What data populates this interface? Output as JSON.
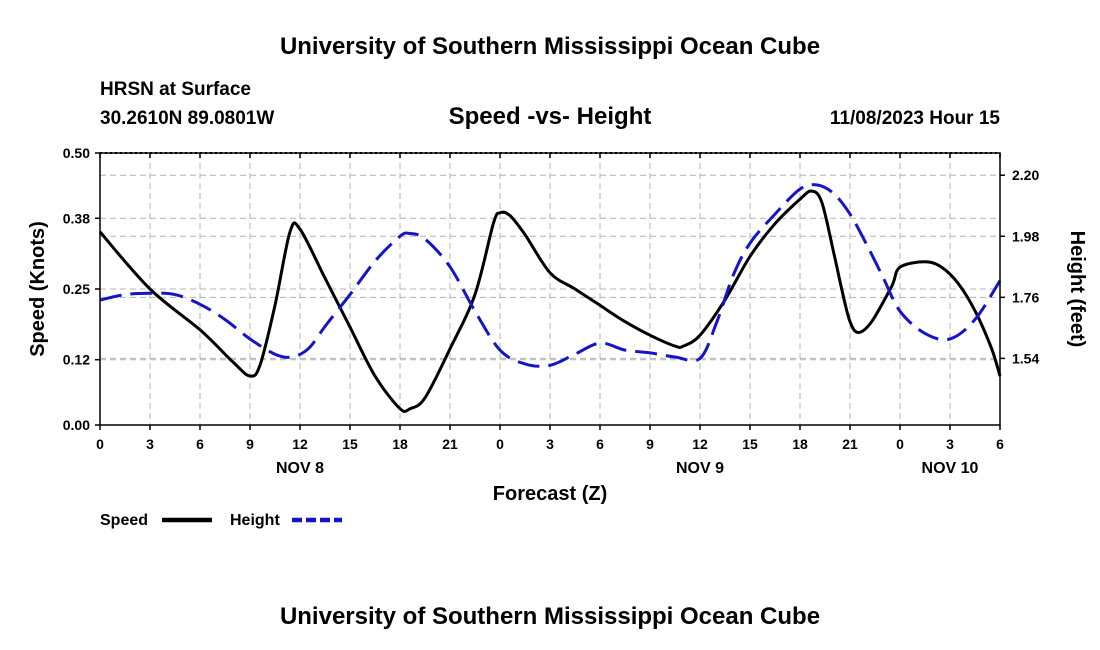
{
  "header": {
    "title": "University of Southern Mississippi Ocean Cube",
    "station": "HRSN at Surface",
    "coords": "30.2610N  89.0801W",
    "datetime": "11/08/2023 Hour 15"
  },
  "footer": {
    "title": "University of Southern Mississippi Ocean Cube"
  },
  "colors": {
    "speed": "#000000",
    "height": "#1515c8",
    "grid": "#b4b4b4"
  },
  "chart_data": {
    "type": "line",
    "title": "Speed -vs- Height",
    "xlabel": "Forecast (Z)",
    "ylabel": "Speed (Knots)",
    "y2label": "Height (feet)",
    "xlim": [
      0,
      54
    ],
    "ylim": [
      0,
      0.5
    ],
    "y2lim": [
      1.3,
      2.28
    ],
    "x_ticks": [
      0,
      3,
      6,
      9,
      12,
      15,
      18,
      21,
      24,
      27,
      30,
      33,
      36,
      39,
      42,
      45,
      48,
      51,
      54
    ],
    "x_tick_labels": [
      "0",
      "3",
      "6",
      "9",
      "12",
      "15",
      "18",
      "21",
      "0",
      "3",
      "6",
      "9",
      "12",
      "15",
      "18",
      "21",
      "0",
      "3",
      "6"
    ],
    "date_labels": [
      {
        "x": 12,
        "label": "NOV 8"
      },
      {
        "x": 36,
        "label": "NOV 9"
      },
      {
        "x": 51,
        "label": "NOV 10"
      }
    ],
    "y_ticks": [
      0,
      0.12,
      0.25,
      0.38,
      0.5
    ],
    "y_tick_labels": [
      "0.00",
      "0.12",
      "0.25",
      "0.38",
      "0.50"
    ],
    "y2_ticks": [
      1.54,
      1.76,
      1.98,
      2.2
    ],
    "y2_tick_labels": [
      "1.54",
      "1.76",
      "1.98",
      "2.20"
    ],
    "series": [
      {
        "name": "Speed",
        "axis": "left",
        "style": "solid",
        "x": [
          0,
          3,
          6,
          8,
          9,
          9.6,
          10.5,
          11.4,
          12,
          13.5,
          15,
          16.5,
          18,
          18.6,
          19.5,
          21,
          22.5,
          23.6,
          24,
          24.6,
          25.5,
          27,
          28.5,
          30,
          31.5,
          33,
          34.5,
          35,
          36,
          37.5,
          39,
          40.5,
          42,
          42.7,
          43.3,
          44,
          44.5,
          45,
          45.5,
          46.3,
          47.5,
          48,
          49.5,
          50.5,
          51.5,
          52.5,
          53.5,
          54
        ],
        "values": [
          0.355,
          0.25,
          0.175,
          0.115,
          0.09,
          0.11,
          0.22,
          0.355,
          0.36,
          0.27,
          0.18,
          0.09,
          0.03,
          0.03,
          0.05,
          0.14,
          0.24,
          0.37,
          0.39,
          0.385,
          0.35,
          0.28,
          0.25,
          0.22,
          0.19,
          0.165,
          0.145,
          0.145,
          0.165,
          0.23,
          0.31,
          0.37,
          0.415,
          0.43,
          0.41,
          0.32,
          0.25,
          0.19,
          0.17,
          0.19,
          0.255,
          0.29,
          0.3,
          0.29,
          0.26,
          0.21,
          0.14,
          0.09
        ]
      },
      {
        "name": "Height",
        "axis": "right",
        "style": "dashed",
        "x": [
          0,
          1.5,
          3,
          4.5,
          6,
          7.5,
          9,
          10.5,
          11.5,
          12.5,
          13.5,
          15,
          16.5,
          18,
          18.6,
          19.5,
          21,
          22.5,
          24,
          25.5,
          27,
          28.5,
          30,
          31.5,
          33,
          34.5,
          36,
          37,
          38,
          39,
          40.5,
          42,
          43,
          44,
          45,
          46,
          47,
          48,
          49.5,
          51,
          52.5,
          54
        ],
        "values": [
          1.75,
          1.77,
          1.775,
          1.77,
          1.735,
          1.68,
          1.61,
          1.555,
          1.545,
          1.575,
          1.655,
          1.77,
          1.89,
          1.98,
          1.99,
          1.97,
          1.87,
          1.71,
          1.57,
          1.52,
          1.515,
          1.555,
          1.595,
          1.57,
          1.56,
          1.545,
          1.54,
          1.67,
          1.84,
          1.955,
          2.06,
          2.15,
          2.165,
          2.135,
          2.06,
          1.95,
          1.83,
          1.71,
          1.63,
          1.61,
          1.68,
          1.82
        ]
      }
    ],
    "legend": [
      {
        "label": "Speed",
        "style": "solid"
      },
      {
        "label": "Height",
        "style": "dashed"
      }
    ]
  }
}
